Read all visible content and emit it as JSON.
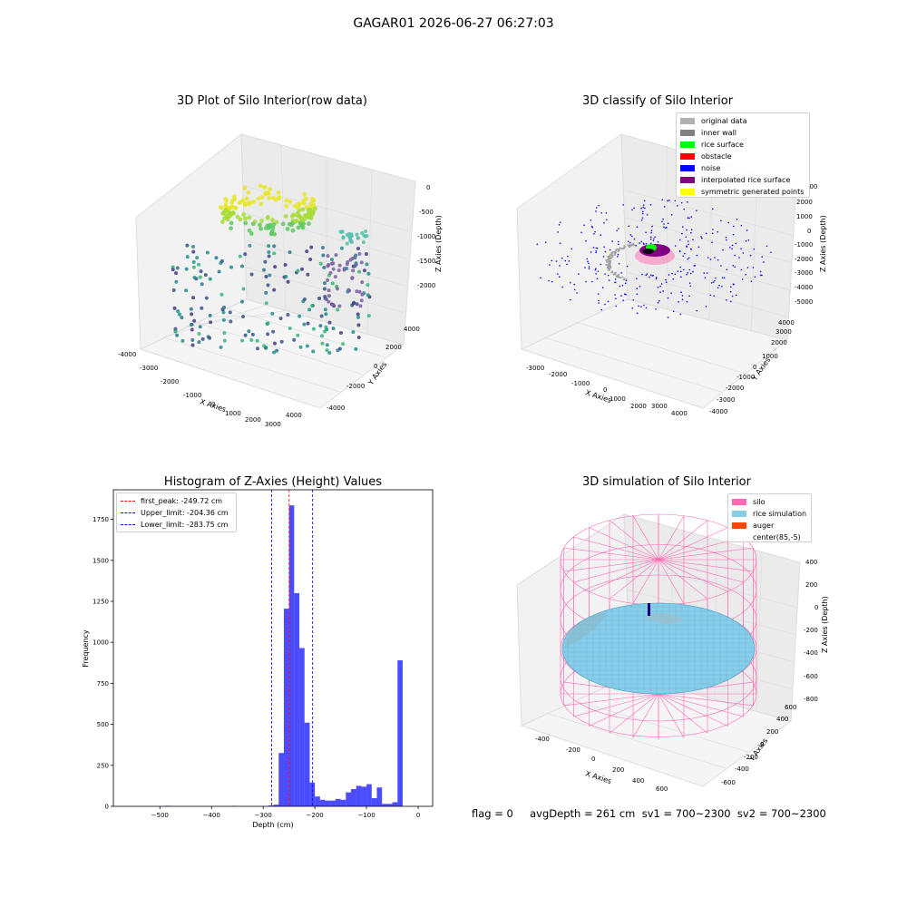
{
  "suptitle": "GAGAR01 2026-06-27 06:27:03",
  "raw_plot": {
    "title": "3D Plot of Silo Interior(row data)",
    "xlabel": "X Axies",
    "ylabel": "Y Axies",
    "zlabel": "Z Axies (Depth)",
    "xticks": [
      "-4000",
      "-3000",
      "-2000",
      "-1000",
      "0",
      "1000",
      "2000",
      "3000",
      "4000"
    ],
    "yticks": [
      "-4000",
      "-2000",
      "0",
      "2000",
      "4000"
    ],
    "zticks": [
      "0",
      "-500",
      "-1000",
      "-1500",
      "-2000"
    ]
  },
  "classify_plot": {
    "title": "3D classify of Silo Interior",
    "xlabel": "X Axies",
    "ylabel": "Y Axies",
    "zlabel": "Z Axies (Depth)",
    "xticks": [
      "-3000",
      "-2000",
      "-1000",
      "0",
      "1000",
      "2000",
      "3000",
      "4000"
    ],
    "yticks": [
      "-4000",
      "-3000",
      "-2000",
      "-1000",
      "0",
      "1000",
      "2000",
      "3000",
      "4000"
    ],
    "zticks": [
      "2000",
      "1000",
      "0",
      "-1000",
      "-2000",
      "-3000",
      "-4000",
      "-5000"
    ],
    "zticks_partial": [
      "000"
    ],
    "legend": [
      {
        "label": "original data",
        "color": "#b0b0b0"
      },
      {
        "label": "inner wall",
        "color": "#808080"
      },
      {
        "label": "rice surface",
        "color": "#00ff00"
      },
      {
        "label": "obstacle",
        "color": "#ff0000"
      },
      {
        "label": "noise",
        "color": "#0000ff"
      },
      {
        "label": "interpolated rice surface",
        "color": "#800080"
      },
      {
        "label": "symmetric generated points",
        "color": "#ffff00"
      }
    ]
  },
  "chart_data": {
    "type": "bar",
    "title": "Histogram of Z-Axies (Height) Values",
    "xlabel": "Depth (cm)",
    "ylabel": "Frequency",
    "xlim": [
      -590,
      28
    ],
    "ylim": [
      0,
      1930
    ],
    "xticks": [
      -500,
      -400,
      -300,
      -200,
      -100,
      0
    ],
    "xtick_labels": [
      "−500",
      "−400",
      "−300",
      "−200",
      "−100",
      "0"
    ],
    "yticks": [
      0,
      250,
      500,
      750,
      1000,
      1250,
      1500,
      1750
    ],
    "bin_width": 10,
    "bar_color": "#0000ff",
    "bins": [
      {
        "x": -490,
        "value": 3
      },
      {
        "x": -360,
        "value": 2
      },
      {
        "x": -290,
        "value": 5
      },
      {
        "x": -280,
        "value": 10
      },
      {
        "x": -270,
        "value": 325
      },
      {
        "x": -260,
        "value": 1205
      },
      {
        "x": -250,
        "value": 1835
      },
      {
        "x": -240,
        "value": 1300
      },
      {
        "x": -230,
        "value": 965
      },
      {
        "x": -220,
        "value": 510
      },
      {
        "x": -210,
        "value": 145
      },
      {
        "x": -200,
        "value": 60
      },
      {
        "x": -190,
        "value": 40
      },
      {
        "x": -180,
        "value": 35
      },
      {
        "x": -170,
        "value": 35
      },
      {
        "x": -160,
        "value": 45
      },
      {
        "x": -150,
        "value": 40
      },
      {
        "x": -140,
        "value": 85
      },
      {
        "x": -130,
        "value": 105
      },
      {
        "x": -120,
        "value": 125
      },
      {
        "x": -110,
        "value": 120
      },
      {
        "x": -100,
        "value": 135
      },
      {
        "x": -90,
        "value": 50
      },
      {
        "x": -80,
        "value": 115
      },
      {
        "x": -70,
        "value": 15
      },
      {
        "x": -60,
        "value": 15
      },
      {
        "x": -50,
        "value": 25
      },
      {
        "x": -40,
        "value": 890
      }
    ],
    "lines": [
      {
        "label": "first_peak: -249.72 cm",
        "value": -249.72,
        "color": "#ff0000"
      },
      {
        "label": "Upper_limit: -204.36 cm",
        "value": -204.36,
        "color": "#0000ff"
      },
      {
        "label": "Lower_limit: -283.75 cm",
        "value": -283.75,
        "color": "#0000ff"
      }
    ]
  },
  "simulation_plot": {
    "title": "3D simulation of Silo Interior",
    "xlabel": "X Axies",
    "ylabel": "Y Axies",
    "zlabel": "Z Axies (Depth)",
    "xticks": [
      "-400",
      "-200",
      "0",
      "200",
      "400",
      "600"
    ],
    "yticks": [
      "-600",
      "-400",
      "-200",
      "0",
      "200",
      "400",
      "600"
    ],
    "zticks": [
      "400",
      "200",
      "0",
      "-200",
      "-400",
      "-600",
      "-800"
    ],
    "legend": [
      {
        "label": "silo",
        "color": "#ff69b4"
      },
      {
        "label": "rice simulation",
        "color": "#87ceeb"
      },
      {
        "label": "auger",
        "color": "#ff4500"
      },
      {
        "label": "center(85,-5)",
        "color": ""
      }
    ]
  },
  "status_line": "flag = 0     avgDepth = 261 cm  sv1 = 700~2300  sv2 = 700~2300"
}
